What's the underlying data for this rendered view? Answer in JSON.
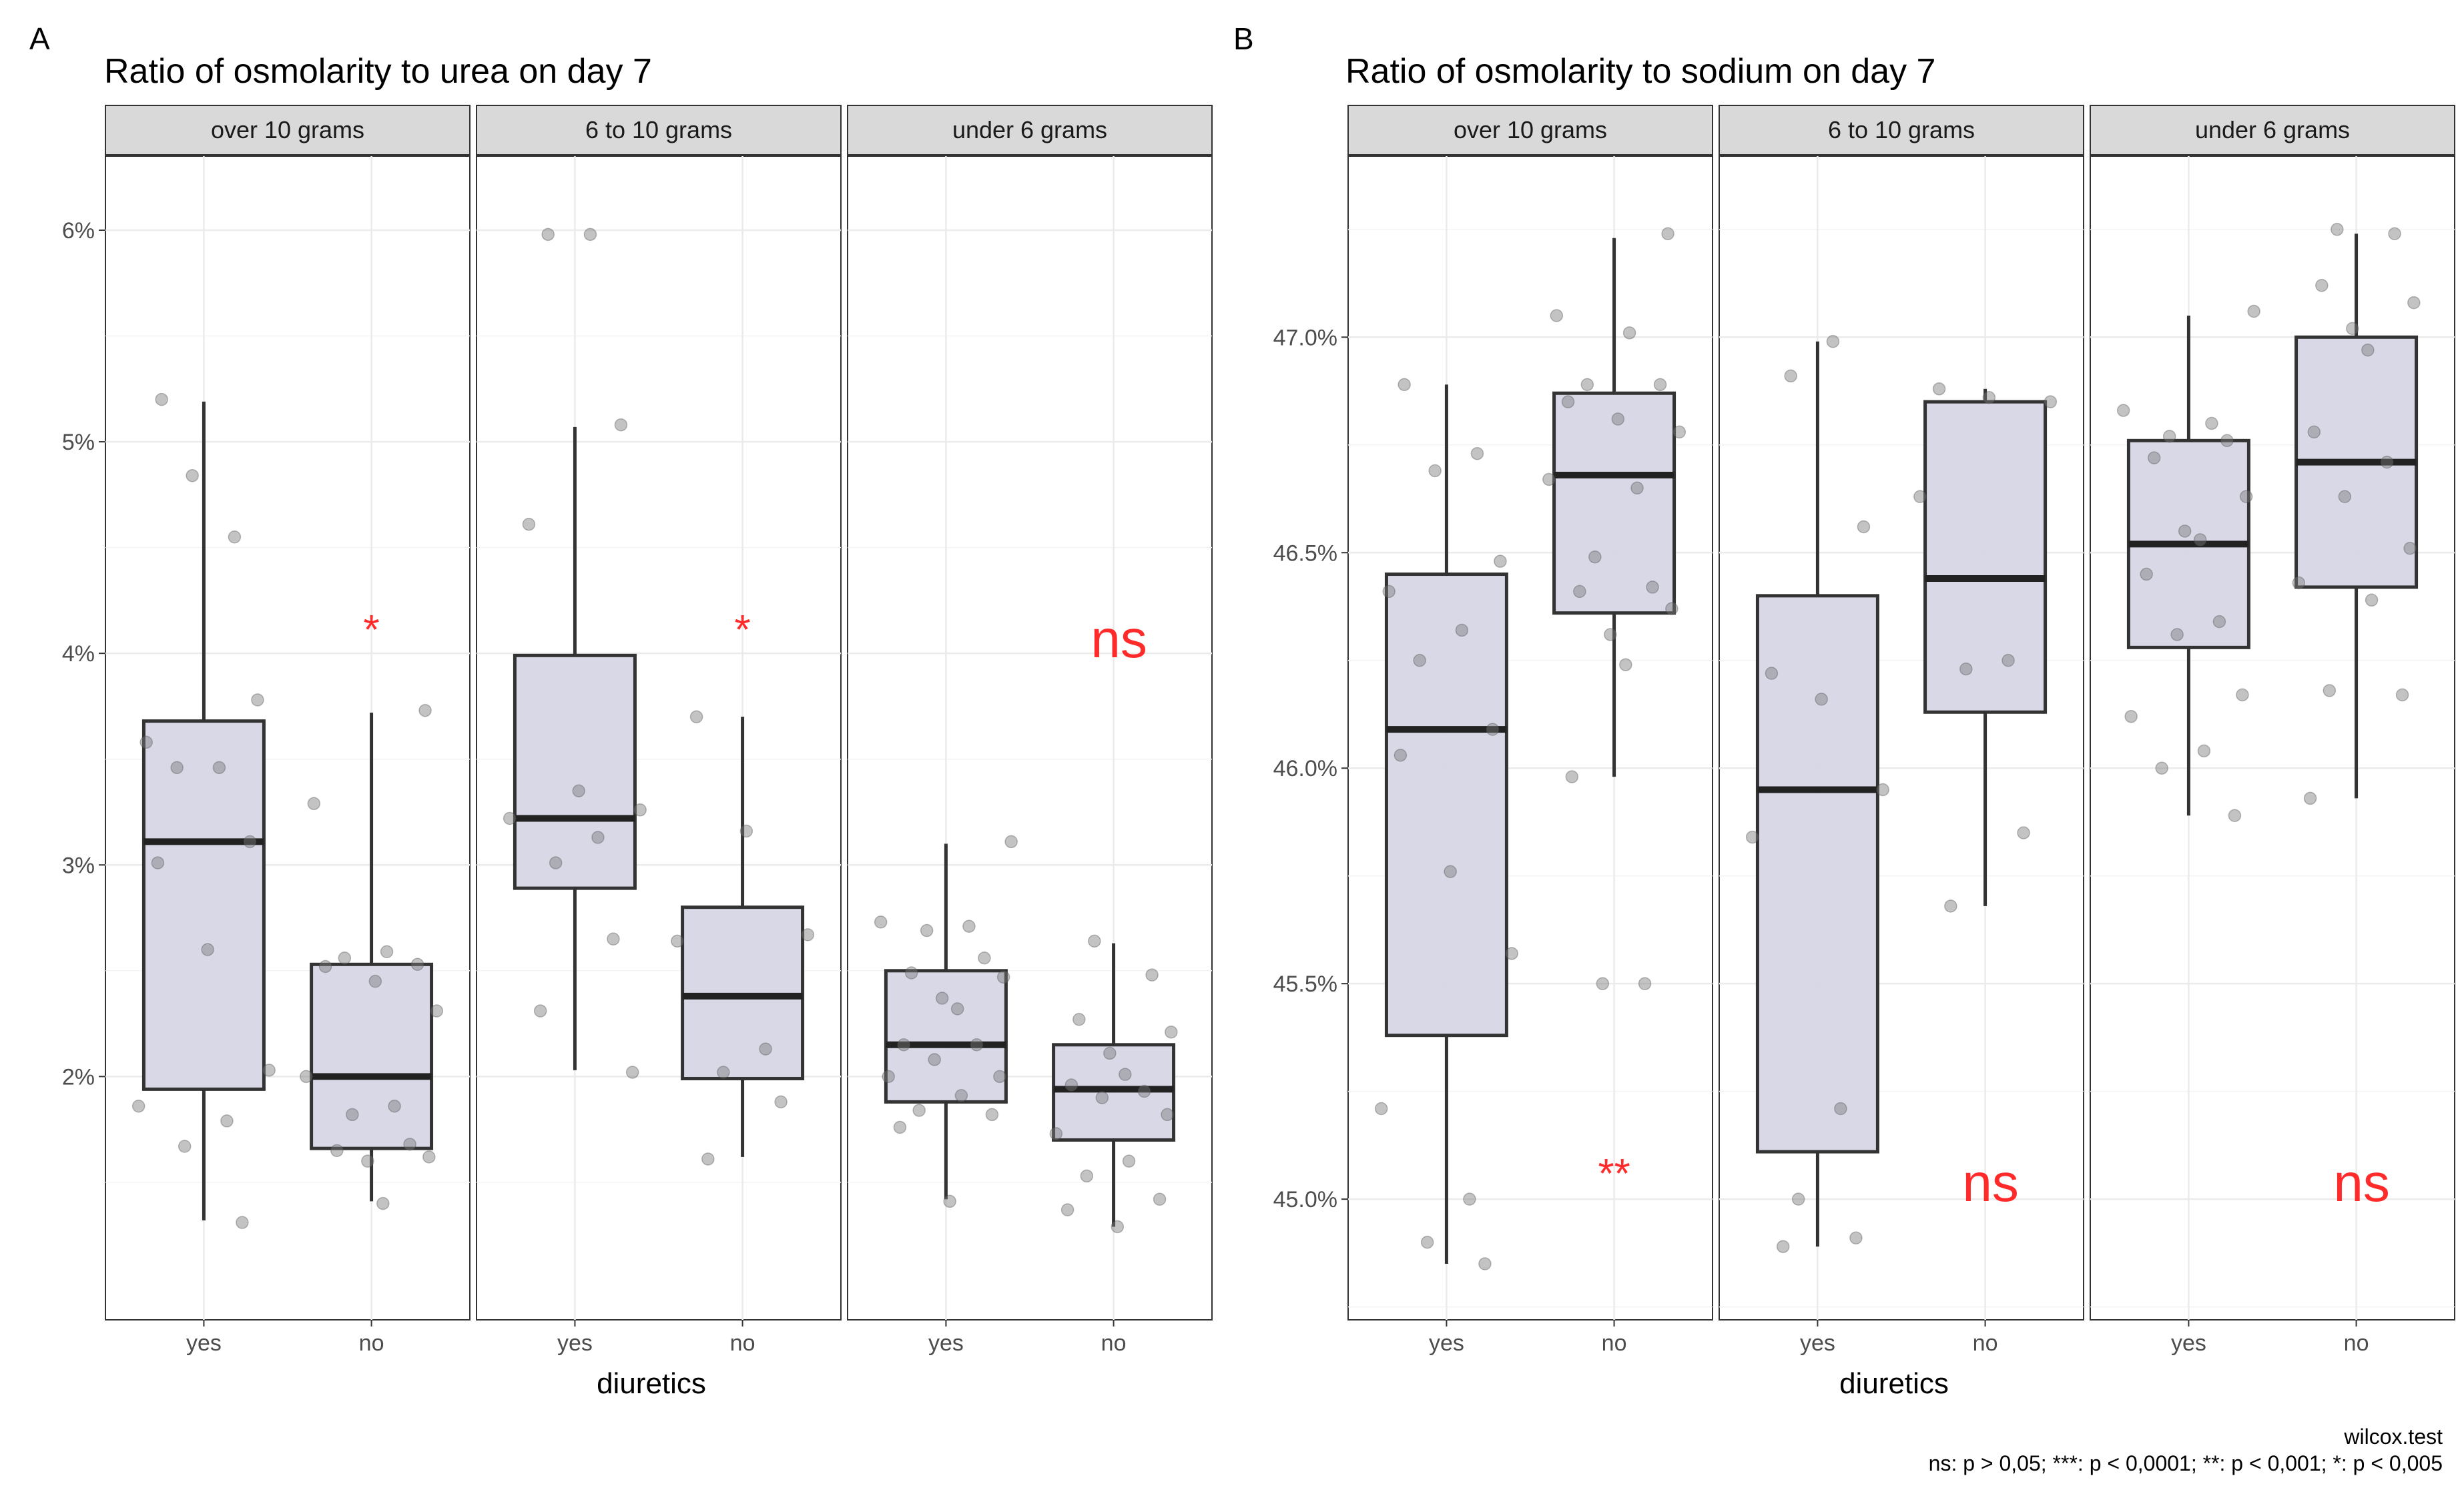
{
  "footnote": {
    "test": "wilcox.test",
    "legend": "ns: p > 0,05; ***: p < 0,0001; **: p < 0,001; *: p < 0,005"
  },
  "colors": {
    "box_fill": "#d6d6e6",
    "significance": "#ff2a2a",
    "strip": "#d9d9d9"
  },
  "chart_data": [
    {
      "type": "box",
      "panel_letter": "A",
      "title": "Ratio of osmolarity to urea on day 7",
      "xlabel": "diuretics",
      "ylabel": "",
      "categories": [
        "yes",
        "no"
      ],
      "ylim": [
        0.0085,
        0.0635
      ],
      "yticks": [
        0.02,
        0.03,
        0.04,
        0.05,
        0.06
      ],
      "ytick_labels": [
        "2%",
        "3%",
        "4%",
        "5%",
        "6%"
      ],
      "grid": true,
      "facets": [
        {
          "label": "over 10 grams",
          "boxes": [
            {
              "category": "yes",
              "whisker_low": 0.0132,
              "q1": 0.0194,
              "median": 0.0311,
              "q3": 0.0368,
              "whisker_high": 0.0519,
              "points": [
                0.052,
                0.0455,
                0.0484,
                0.0378,
                0.0358,
                0.0346,
                0.0346,
                0.0311,
                0.0301,
                0.026,
                0.0203,
                0.0186,
                0.0179,
                0.0167,
                0.0131
              ]
            },
            {
              "category": "no",
              "whisker_low": 0.0141,
              "q1": 0.0166,
              "median": 0.02,
              "q3": 0.0253,
              "whisker_high": 0.0372,
              "points": [
                0.0373,
                0.0329,
                0.0259,
                0.0256,
                0.0253,
                0.0252,
                0.0245,
                0.0231,
                0.02,
                0.0186,
                0.0182,
                0.0168,
                0.0165,
                0.0162,
                0.016,
                0.014
              ]
            }
          ],
          "significance": "*"
        },
        {
          "label": "6 to 10 grams",
          "boxes": [
            {
              "category": "yes",
              "whisker_low": 0.0203,
              "q1": 0.0289,
              "median": 0.0322,
              "q3": 0.0399,
              "whisker_high": 0.0507,
              "points": [
                0.0598,
                0.0598,
                0.0508,
                0.0461,
                0.0335,
                0.0326,
                0.0322,
                0.0313,
                0.0301,
                0.0265,
                0.0231,
                0.0202
              ]
            },
            {
              "category": "no",
              "whisker_low": 0.0162,
              "q1": 0.0199,
              "median": 0.0238,
              "q3": 0.028,
              "whisker_high": 0.037,
              "points": [
                0.037,
                0.0316,
                0.0267,
                0.0264,
                0.0213,
                0.0202,
                0.0188,
                0.0161
              ]
            }
          ],
          "significance": "*"
        },
        {
          "label": "under 6 grams",
          "boxes": [
            {
              "category": "yes",
              "whisker_low": 0.0142,
              "q1": 0.0188,
              "median": 0.0215,
              "q3": 0.025,
              "whisker_high": 0.031,
              "points": [
                0.0311,
                0.0273,
                0.0271,
                0.0269,
                0.0256,
                0.0249,
                0.0247,
                0.0237,
                0.0232,
                0.0215,
                0.0215,
                0.0208,
                0.02,
                0.02,
                0.0191,
                0.0184,
                0.0182,
                0.0176,
                0.0141
              ]
            },
            {
              "category": "no",
              "whisker_low": 0.0129,
              "q1": 0.017,
              "median": 0.0194,
              "q3": 0.0215,
              "whisker_high": 0.0263,
              "points": [
                0.0264,
                0.0248,
                0.0227,
                0.0221,
                0.0211,
                0.0201,
                0.0196,
                0.0193,
                0.019,
                0.0182,
                0.0173,
                0.016,
                0.0153,
                0.0142,
                0.0137,
                0.0129
              ]
            }
          ],
          "significance": "ns"
        }
      ]
    },
    {
      "type": "box",
      "panel_letter": "B",
      "title": "Ratio of osmolarity to sodium on day 7",
      "xlabel": "diuretics",
      "ylabel": "",
      "categories": [
        "yes",
        "no"
      ],
      "ylim": [
        0.4472,
        0.4742
      ],
      "yticks": [
        0.45,
        0.455,
        0.46,
        0.465,
        0.47
      ],
      "ytick_labels": [
        "45.0%",
        "45.5%",
        "46.0%",
        "46.5%",
        "47.0%"
      ],
      "grid": true,
      "facets": [
        {
          "label": "over 10 grams",
          "boxes": [
            {
              "category": "yes",
              "whisker_low": 0.4485,
              "q1": 0.4538,
              "median": 0.4609,
              "q3": 0.4645,
              "whisker_high": 0.4689,
              "points": [
                0.4689,
                0.4673,
                0.4669,
                0.4648,
                0.4641,
                0.4632,
                0.4625,
                0.4609,
                0.4603,
                0.4576,
                0.4557,
                0.4521,
                0.45,
                0.449,
                0.4485
              ]
            },
            {
              "category": "no",
              "whisker_low": 0.4598,
              "q1": 0.4636,
              "median": 0.4668,
              "q3": 0.4687,
              "whisker_high": 0.4723,
              "points": [
                0.4724,
                0.4705,
                0.4701,
                0.4689,
                0.4689,
                0.4685,
                0.4681,
                0.4678,
                0.4667,
                0.4665,
                0.4649,
                0.4642,
                0.4641,
                0.4637,
                0.4631,
                0.4624,
                0.4598,
                0.455,
                0.455
              ]
            }
          ],
          "significance": "**"
        },
        {
          "label": "6 to 10 grams",
          "boxes": [
            {
              "category": "yes",
              "whisker_low": 0.4489,
              "q1": 0.4511,
              "median": 0.4595,
              "q3": 0.464,
              "whisker_high": 0.4699,
              "points": [
                0.4699,
                0.4691,
                0.4656,
                0.4622,
                0.4616,
                0.4595,
                0.4584,
                0.4521,
                0.45,
                0.4491,
                0.4489
              ]
            },
            {
              "category": "no",
              "whisker_low": 0.4568,
              "q1": 0.4613,
              "median": 0.4644,
              "q3": 0.4685,
              "whisker_high": 0.4688,
              "points": [
                0.4688,
                0.4686,
                0.4685,
                0.4663,
                0.4625,
                0.4623,
                0.4585,
                0.4568
              ]
            }
          ],
          "significance": "ns"
        },
        {
          "label": "under 6 grams",
          "boxes": [
            {
              "category": "yes",
              "whisker_low": 0.4589,
              "q1": 0.4628,
              "median": 0.4652,
              "q3": 0.4676,
              "whisker_high": 0.4705,
              "points": [
                0.4706,
                0.4683,
                0.468,
                0.4677,
                0.4676,
                0.4672,
                0.4663,
                0.4655,
                0.4653,
                0.4645,
                0.4634,
                0.4631,
                0.4617,
                0.4612,
                0.4604,
                0.46,
                0.4589
              ]
            },
            {
              "category": "no",
              "whisker_low": 0.4593,
              "q1": 0.4642,
              "median": 0.4671,
              "q3": 0.47,
              "whisker_high": 0.4724,
              "points": [
                0.4725,
                0.4724,
                0.4712,
                0.4708,
                0.4702,
                0.4697,
                0.4678,
                0.4671,
                0.4663,
                0.4651,
                0.4643,
                0.4639,
                0.4618,
                0.4617,
                0.4593
              ]
            }
          ],
          "significance": "ns"
        }
      ]
    }
  ]
}
